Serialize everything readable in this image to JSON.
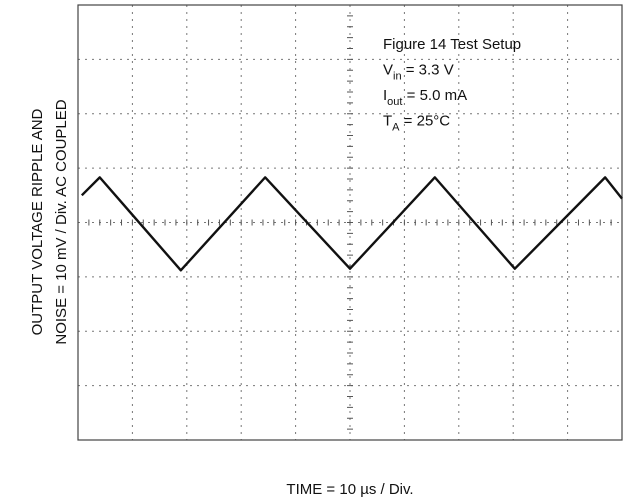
{
  "chart_data": {
    "type": "line",
    "x_label": "TIME = 10 µs / Div.",
    "y_label": [
      "OUTPUT VOLTAGE RIPPLE AND",
      "NOISE = 10 mV / Div. AC COUPLED"
    ],
    "annotations": [
      [
        "Figure 14 Test Setup"
      ],
      [
        "V",
        "in",
        " = 3.3 V"
      ],
      [
        "I",
        "out",
        " = 5.0 mA"
      ],
      [
        "T",
        "A",
        " = 25°C"
      ]
    ],
    "xlim": [
      0,
      100
    ],
    "ylim": [
      -40,
      40
    ],
    "grid": true,
    "series": [
      {
        "color": "#111111",
        "x": [
          0.7,
          4.0,
          18.9,
          34.4,
          50.0,
          65.6,
          80.3,
          96.9,
          100
        ],
        "values": [
          5.0,
          8.3,
          -8.8,
          8.3,
          -8.5,
          8.3,
          -8.5,
          8.3,
          4.4
        ]
      }
    ]
  }
}
